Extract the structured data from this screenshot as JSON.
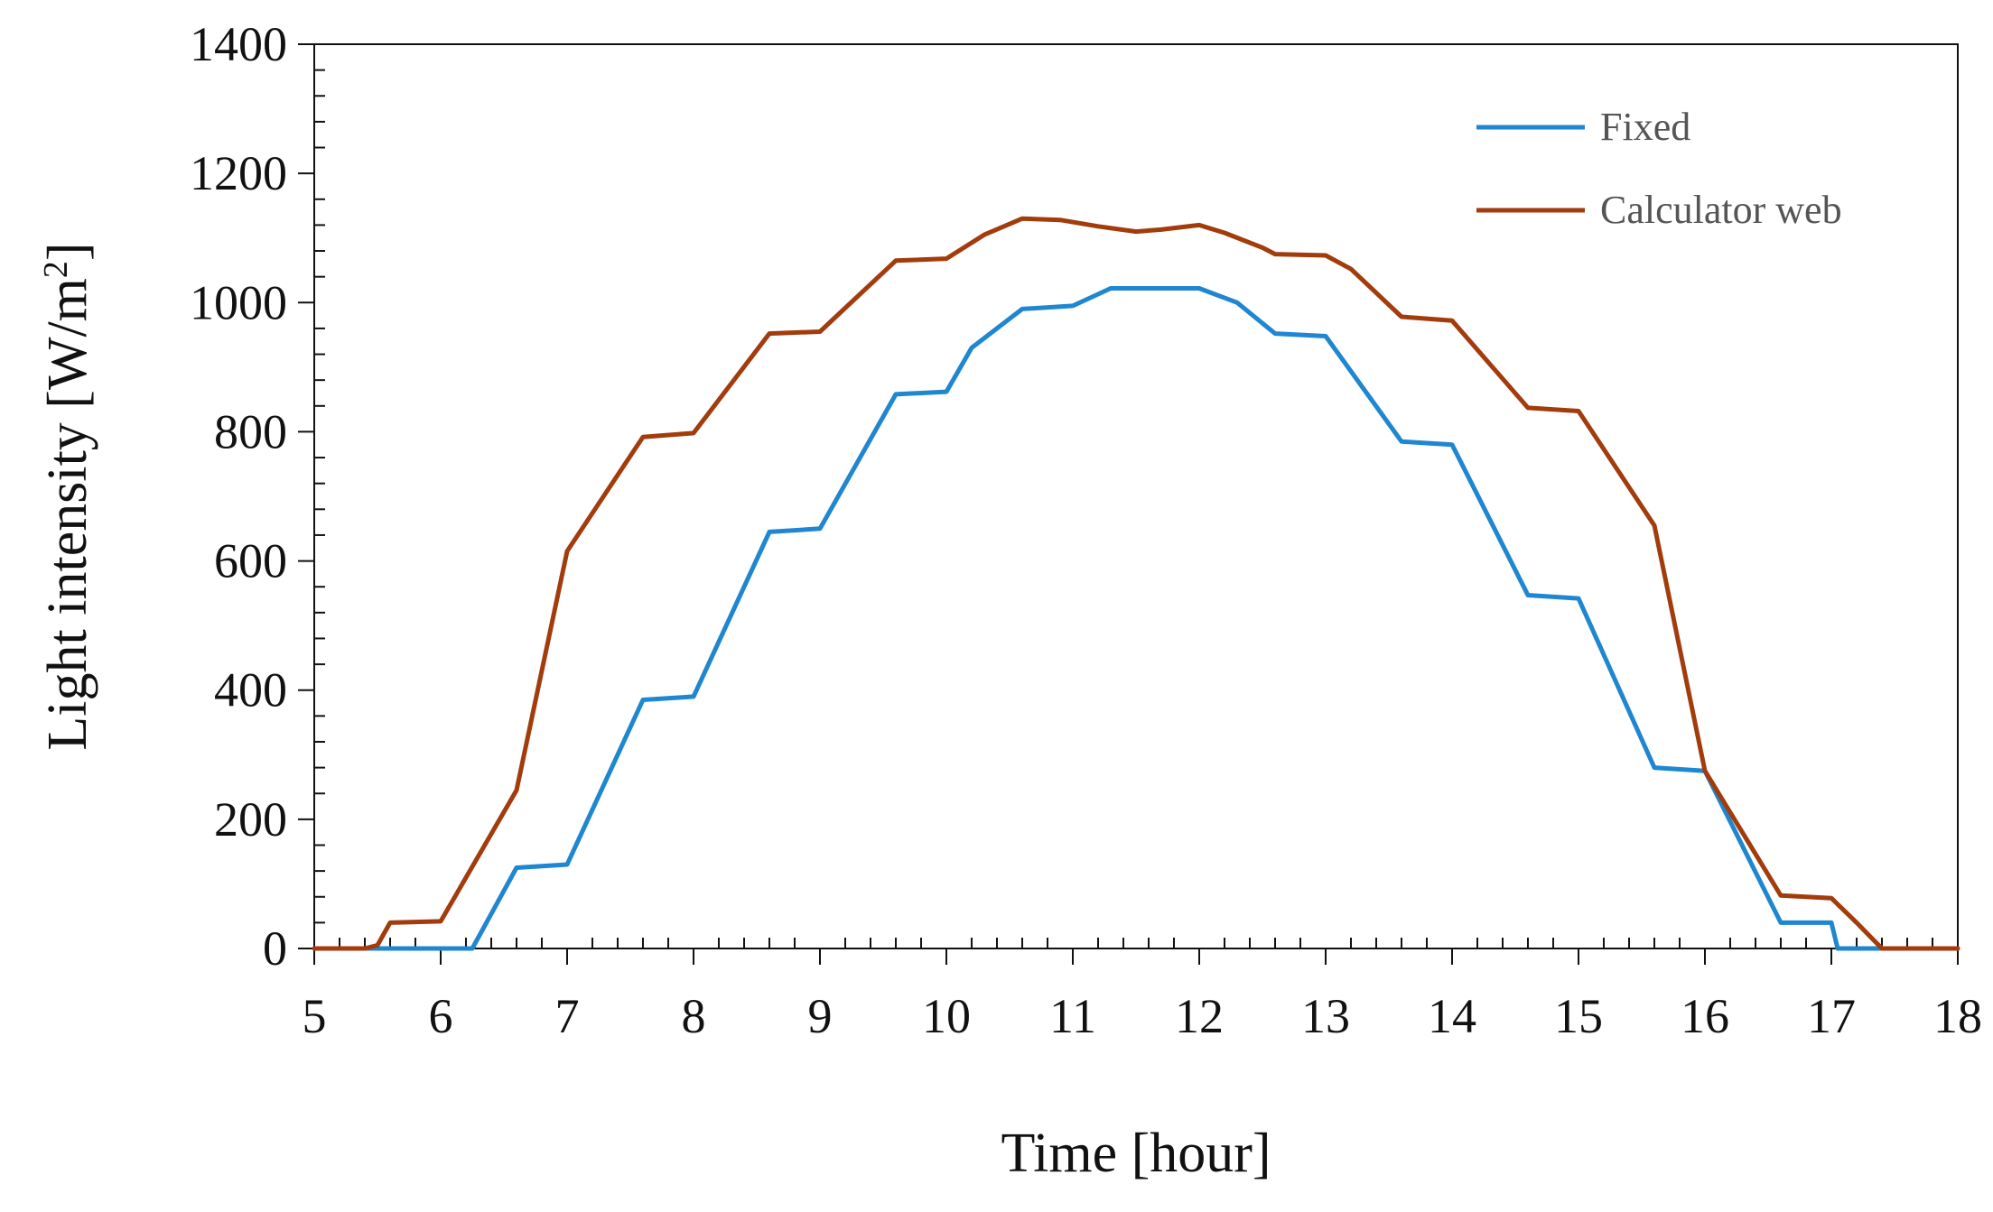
{
  "colors": {
    "fixed": "#1f86d0",
    "calculator_web": "#a23c0c",
    "axis": "#111111",
    "background": "#ffffff"
  },
  "chart_data": {
    "type": "line",
    "title": "",
    "xlabel": "Time [hour]",
    "ylabel_main": "Light intensity [W/m",
    "ylabel_sup": "2",
    "ylabel_end": "]",
    "xlim": [
      5,
      18
    ],
    "ylim": [
      0,
      1400
    ],
    "x_ticks": [
      5,
      6,
      7,
      8,
      9,
      10,
      11,
      12,
      13,
      14,
      15,
      16,
      17,
      18
    ],
    "y_ticks": [
      0,
      200,
      400,
      600,
      800,
      1000,
      1200,
      1400
    ],
    "grid": false,
    "legend_position": "top-right",
    "series": [
      {
        "name": "Fixed",
        "color_key": "fixed",
        "x": [
          5.0,
          6.0,
          6.25,
          6.6,
          7.0,
          7.6,
          8.0,
          8.6,
          9.0,
          9.6,
          10.0,
          10.2,
          10.6,
          11.0,
          11.3,
          11.5,
          11.7,
          12.0,
          12.3,
          12.6,
          13.0,
          13.6,
          14.0,
          14.6,
          15.0,
          15.6,
          16.0,
          16.6,
          17.0,
          17.05,
          18.0
        ],
        "y": [
          0,
          0,
          0,
          125,
          130,
          385,
          390,
          645,
          650,
          858,
          862,
          930,
          990,
          995,
          1022,
          1022,
          1022,
          1022,
          1000,
          952,
          948,
          785,
          780,
          547,
          542,
          280,
          275,
          40,
          40,
          0,
          0
        ]
      },
      {
        "name": "Calculator web",
        "color_key": "calculator_web",
        "x": [
          5.0,
          5.4,
          5.5,
          5.6,
          6.0,
          6.6,
          7.0,
          7.6,
          8.0,
          8.6,
          9.0,
          9.6,
          10.0,
          10.3,
          10.6,
          10.9,
          11.2,
          11.5,
          11.7,
          12.0,
          12.2,
          12.5,
          12.6,
          13.0,
          13.2,
          13.6,
          14.0,
          14.6,
          15.0,
          15.6,
          16.0,
          16.6,
          17.0,
          17.2,
          17.3,
          17.4,
          18.0
        ],
        "y": [
          0,
          0,
          5,
          40,
          42,
          245,
          615,
          792,
          798,
          952,
          955,
          1065,
          1068,
          1105,
          1130,
          1128,
          1118,
          1110,
          1113,
          1120,
          1108,
          1085,
          1075,
          1073,
          1052,
          978,
          972,
          837,
          832,
          655,
          275,
          82,
          78,
          40,
          20,
          0,
          0
        ]
      }
    ]
  }
}
